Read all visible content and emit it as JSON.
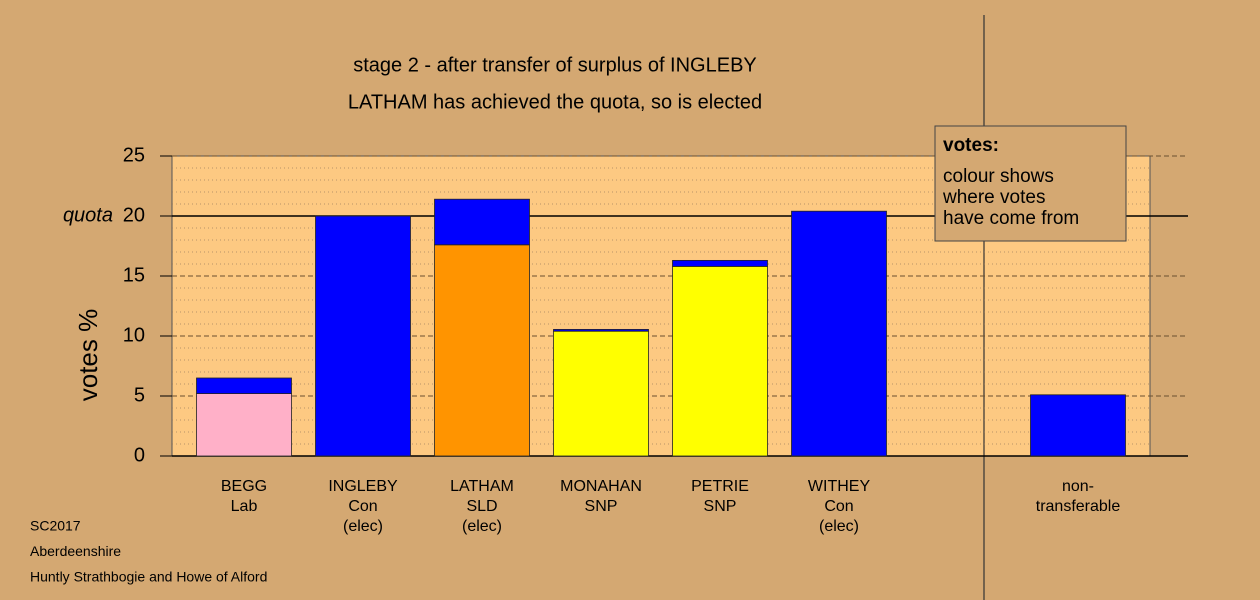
{
  "chart_data": {
    "type": "stacked-bar",
    "title": "stage 2 - after transfer of surplus of INGLEBY",
    "subtitle": "LATHAM has achieved the quota, so is elected",
    "ylabel": "votes %",
    "categories": [
      [
        "BEGG",
        "Lab"
      ],
      [
        "INGLEBY",
        "Con",
        "(elec)"
      ],
      [
        "LATHAM",
        "SLD",
        "(elec)"
      ],
      [
        "MONAHAN",
        "SNP"
      ],
      [
        "PETRIE",
        "SNP"
      ],
      [
        "WITHEY",
        "Con",
        "(elec)"
      ],
      [
        "non-",
        "transferable"
      ]
    ],
    "series": [
      {
        "colors": [
          "#ffb0c8",
          "#0000ff",
          "#ff9400",
          "#ffff00",
          "#ffff00",
          "#0000ff",
          "#0000ff"
        ],
        "values": [
          5.2,
          20.0,
          17.6,
          10.4,
          15.8,
          20.4,
          null
        ]
      },
      {
        "color": "#0000ff",
        "values": [
          1.3,
          null,
          3.8,
          0.15,
          0.5,
          null,
          5.1
        ]
      }
    ],
    "ylim": [
      0,
      25
    ],
    "yticks": [
      0,
      5,
      10,
      15,
      20,
      25
    ],
    "yminorticks": [
      1,
      2,
      3,
      4,
      6,
      7,
      8,
      9,
      11,
      12,
      13,
      14,
      16,
      17,
      18,
      19,
      21,
      22,
      23,
      24
    ],
    "quota": 20,
    "quota_label": "quota",
    "legend": {
      "title": "votes:",
      "lines": [
        "colour shows",
        "where votes",
        "have come from"
      ]
    },
    "footnotes": [
      "SC2017",
      "Aberdeenshire",
      "Huntly Strathbogie and Howe of Alford"
    ],
    "grid": true
  }
}
